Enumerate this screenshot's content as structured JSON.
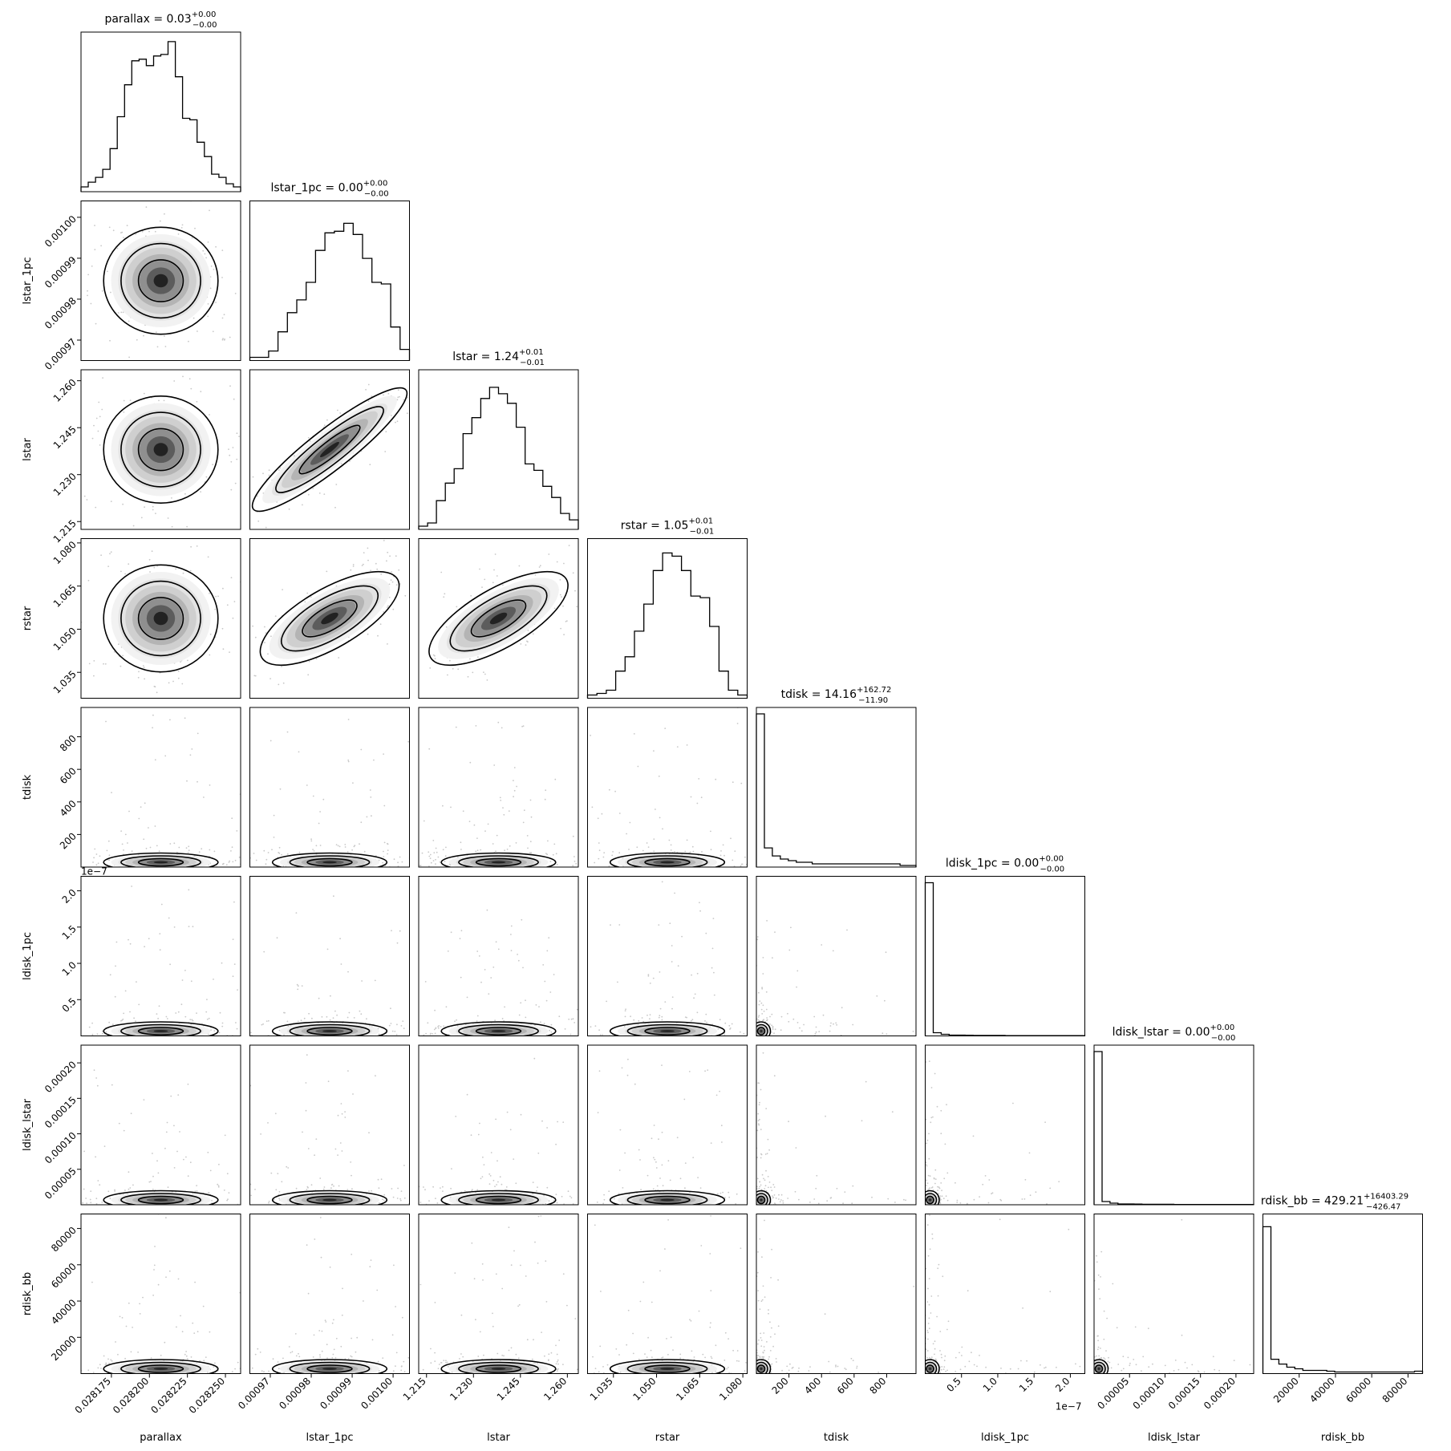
{
  "chart_data": {
    "type": "corner",
    "parameters": [
      "parallax",
      "lstar_1pc",
      "lstar",
      "rstar",
      "tdisk",
      "ldisk_1pc",
      "ldisk_lstar",
      "rdisk_bb"
    ],
    "labels": [
      "parallax",
      "lstar_1pc",
      "lstar",
      "rstar",
      "tdisk",
      "ldisk_1pc",
      "ldisk_lstar",
      "rdisk_bb"
    ],
    "titles": [
      {
        "name": "parallax",
        "median": "0.03",
        "plus": "+0.00",
        "minus": "−0.00"
      },
      {
        "name": "lstar_1pc",
        "median": "0.00",
        "plus": "+0.00",
        "minus": "−0.00"
      },
      {
        "name": "lstar",
        "median": "1.24",
        "plus": "+0.01",
        "minus": "−0.01"
      },
      {
        "name": "rstar",
        "median": "1.05",
        "plus": "+0.01",
        "minus": "−0.01"
      },
      {
        "name": "tdisk",
        "median": "14.16",
        "plus": "+162.72",
        "minus": "−11.90"
      },
      {
        "name": "ldisk_1pc",
        "median": "0.00",
        "plus": "+0.00",
        "minus": "−0.00"
      },
      {
        "name": "ldisk_lstar",
        "median": "0.00",
        "plus": "+0.00",
        "minus": "−0.00"
      },
      {
        "name": "rdisk_bb",
        "median": "429.21",
        "plus": "+16403.29",
        "minus": "−426.47"
      }
    ],
    "ranges": [
      [
        0.028155,
        0.02826
      ],
      [
        0.000965,
        0.001004
      ],
      [
        1.2125,
        1.2635
      ],
      [
        1.026,
        1.0815
      ],
      [
        0,
        980
      ],
      [
        0,
        2.2e-07
      ],
      [
        0,
        0.000225
      ],
      [
        0,
        88000
      ]
    ],
    "x_ticks": [
      [
        "0.028175",
        "0.028200",
        "0.028225",
        "0.028250"
      ],
      [
        "0.00097",
        "0.00098",
        "0.00099",
        "0.00100"
      ],
      [
        "1.215",
        "1.230",
        "1.245",
        "1.260"
      ],
      [
        "1.035",
        "1.050",
        "1.065",
        "1.080"
      ],
      [
        "200",
        "400",
        "600",
        "800"
      ],
      [
        "0.5",
        "1.0",
        "1.5",
        "2.0"
      ],
      [
        "0.00005",
        "0.00010",
        "0.00015",
        "0.00020"
      ],
      [
        "20000",
        "40000",
        "60000",
        "80000"
      ]
    ],
    "x_tick_values": [
      [
        0.028175,
        0.0282,
        0.028225,
        0.02825
      ],
      [
        0.00097,
        0.00098,
        0.00099,
        0.001
      ],
      [
        1.215,
        1.23,
        1.245,
        1.26
      ],
      [
        1.035,
        1.05,
        1.065,
        1.08
      ],
      [
        200,
        400,
        600,
        800
      ],
      [
        5e-08,
        1e-07,
        1.5e-07,
        2e-07
      ],
      [
        5e-05,
        0.0001,
        0.00015,
        0.0002
      ],
      [
        20000,
        40000,
        60000,
        80000
      ]
    ],
    "y_ticks": [
      null,
      [
        "0.00097",
        "0.00098",
        "0.00099",
        "0.00100"
      ],
      [
        "1.215",
        "1.230",
        "1.245",
        "1.260"
      ],
      [
        "1.035",
        "1.050",
        "1.065",
        "1.080"
      ],
      [
        "200",
        "400",
        "600",
        "800"
      ],
      [
        "0.5",
        "1.0",
        "1.5",
        "2.0"
      ],
      [
        "0.00005",
        "0.00010",
        "0.00015",
        "0.00020"
      ],
      [
        "20000",
        "40000",
        "60000",
        "80000"
      ]
    ],
    "y_tick_values": [
      null,
      [
        0.00097,
        0.00098,
        0.00099,
        0.001
      ],
      [
        1.215,
        1.23,
        1.245,
        1.26
      ],
      [
        1.035,
        1.05,
        1.065,
        1.08
      ],
      [
        200,
        400,
        600,
        800
      ],
      [
        5e-08,
        1e-07,
        1.5e-07,
        2e-07
      ],
      [
        5e-05,
        0.0001,
        0.00015,
        0.0002
      ],
      [
        20000,
        40000,
        60000,
        80000
      ]
    ],
    "offset_texts": {
      "ldisk_1pc_y": "1e−7",
      "ldisk_1pc_x": "1e−7"
    },
    "histograms": [
      [
        0.03,
        0.06,
        0.09,
        0.14,
        0.27,
        0.47,
        0.67,
        0.82,
        0.83,
        0.79,
        0.85,
        0.86,
        0.94,
        0.72,
        0.46,
        0.45,
        0.31,
        0.22,
        0.11,
        0.09,
        0.05,
        0.03
      ],
      [
        0.02,
        0.02,
        0.06,
        0.18,
        0.3,
        0.38,
        0.49,
        0.69,
        0.8,
        0.81,
        0.86,
        0.79,
        0.64,
        0.49,
        0.48,
        0.21,
        0.07
      ],
      [
        0.02,
        0.04,
        0.18,
        0.29,
        0.38,
        0.6,
        0.7,
        0.82,
        0.89,
        0.85,
        0.79,
        0.64,
        0.41,
        0.37,
        0.27,
        0.2,
        0.1,
        0.06
      ],
      [
        0.02,
        0.03,
        0.05,
        0.17,
        0.26,
        0.42,
        0.59,
        0.8,
        0.91,
        0.89,
        0.8,
        0.64,
        0.63,
        0.45,
        0.17,
        0.05,
        0.02
      ],
      [
        0.96,
        0.12,
        0.07,
        0.05,
        0.04,
        0.03,
        0.03,
        0.02,
        0.02,
        0.02,
        0.02,
        0.02,
        0.02,
        0.02,
        0.02,
        0.02,
        0.02,
        0.02,
        0.01,
        0.01
      ],
      [
        0.96,
        0.02,
        0.01,
        0.005,
        0.005,
        0.004,
        0.003,
        0.003,
        0.003,
        0.003,
        0.002,
        0.002,
        0.002,
        0.002,
        0.002,
        0.002,
        0.002,
        0.002,
        0.002,
        0.002
      ],
      [
        0.96,
        0.02,
        0.01,
        0.005,
        0.005,
        0.004,
        0.003,
        0.003,
        0.003,
        0.003,
        0.002,
        0.002,
        0.002,
        0.002,
        0.002,
        0.002,
        0.002,
        0.002,
        0.002,
        0.002
      ],
      [
        0.92,
        0.09,
        0.06,
        0.04,
        0.03,
        0.02,
        0.02,
        0.02,
        0.015,
        0.01,
        0.01,
        0.01,
        0.01,
        0.01,
        0.01,
        0.01,
        0.01,
        0.01,
        0.01,
        0.015
      ]
    ],
    "grid": false,
    "legend": "none"
  }
}
